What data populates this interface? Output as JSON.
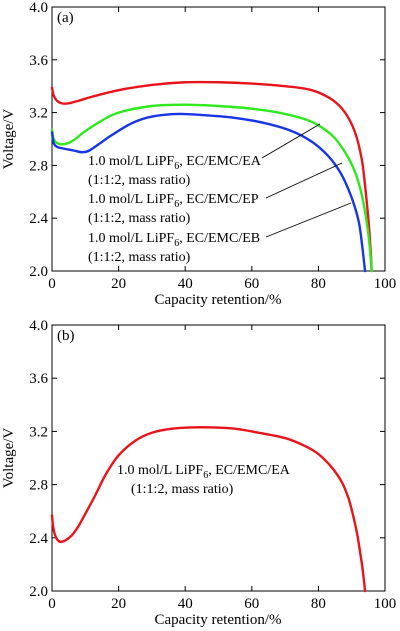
{
  "chart_data": [
    {
      "type": "line",
      "panel_label": "(a)",
      "xlabel": "Capacity retention/%",
      "ylabel": "Voltage/V",
      "xlim": [
        0,
        100
      ],
      "ylim": [
        2.0,
        4.0
      ],
      "x_ticks": [
        0,
        20,
        40,
        60,
        80,
        100
      ],
      "y_ticks": [
        2.0,
        2.4,
        2.8,
        3.2,
        3.6,
        4.0
      ],
      "x_tick_labels": [
        "0",
        "20",
        "40",
        "60",
        "80",
        "100"
      ],
      "y_tick_labels": [
        "2.0",
        "2.4",
        "2.8",
        "3.2",
        "3.6",
        "4.0"
      ],
      "grid": false,
      "series": [
        {
          "color": "#e8141c",
          "x": [
            0,
            0.5,
            1.5,
            3,
            5,
            8,
            12,
            20,
            30,
            40,
            50,
            60,
            70,
            78,
            84,
            88,
            91,
            93,
            94,
            94.8,
            95.3,
            95.7,
            96.0
          ],
          "y": [
            3.39,
            3.33,
            3.29,
            3.27,
            3.27,
            3.29,
            3.32,
            3.37,
            3.41,
            3.43,
            3.43,
            3.42,
            3.4,
            3.37,
            3.3,
            3.2,
            3.05,
            2.85,
            2.65,
            2.45,
            2.3,
            2.15,
            2.0
          ]
        },
        {
          "color": "#2fe81d",
          "x": [
            0,
            0.5,
            1.5,
            3,
            5,
            7,
            10,
            15,
            20,
            30,
            40,
            50,
            60,
            70,
            78,
            84,
            88,
            91,
            93,
            94.2,
            95.0,
            95.6,
            96.0
          ],
          "y": [
            3.07,
            3.0,
            2.97,
            2.96,
            2.97,
            3.0,
            3.06,
            3.14,
            3.2,
            3.25,
            3.26,
            3.25,
            3.23,
            3.19,
            3.13,
            3.03,
            2.9,
            2.75,
            2.58,
            2.42,
            2.28,
            2.13,
            2.0
          ]
        },
        {
          "color": "#1636e6",
          "x": [
            0,
            0.5,
            1.5,
            3,
            5,
            7,
            9,
            11,
            14,
            18,
            24,
            30,
            38,
            46,
            55,
            64,
            72,
            78,
            83,
            86.5,
            89,
            91,
            92.3,
            93.2,
            94.0
          ],
          "y": [
            3.05,
            2.97,
            2.94,
            2.93,
            2.92,
            2.91,
            2.9,
            2.91,
            2.96,
            3.03,
            3.12,
            3.17,
            3.19,
            3.18,
            3.16,
            3.12,
            3.06,
            2.98,
            2.87,
            2.75,
            2.62,
            2.48,
            2.35,
            2.18,
            2.0
          ]
        }
      ],
      "annotations": [
        {
          "main": "1.0 mol/L LiPF",
          "sub": "6",
          "rest": ", EC/EMC/EA",
          "line2": "(1:1:2, mass ratio)"
        },
        {
          "main": "1.0 mol/L LiPF",
          "sub": "6",
          "rest": ", EC/EMC/EP",
          "line2": "(1:1:2, mass ratio)"
        },
        {
          "main": "1.0 mol/L LiPF",
          "sub": "6",
          "rest": ", EC/EMC/EB",
          "line2": "(1:1:2, mass ratio)"
        }
      ]
    },
    {
      "type": "line",
      "panel_label": "(b)",
      "xlabel": "Capacity retention/%",
      "ylabel": "Voltage/V",
      "xlim": [
        0,
        100
      ],
      "ylim": [
        2.0,
        4.0
      ],
      "x_ticks": [
        0,
        20,
        40,
        60,
        80,
        100
      ],
      "y_ticks": [
        2.0,
        2.4,
        2.8,
        3.2,
        3.6,
        4.0
      ],
      "x_tick_labels": [
        "0",
        "20",
        "40",
        "60",
        "80",
        "100"
      ],
      "y_tick_labels": [
        "2.0",
        "2.4",
        "2.8",
        "3.2",
        "3.6",
        "4.0"
      ],
      "grid": false,
      "series": [
        {
          "color": "#e8141c",
          "x": [
            0,
            0.3,
            0.8,
            1.5,
            2.5,
            4,
            6,
            8,
            10,
            13,
            16,
            20,
            25,
            30,
            36,
            42,
            48,
            55,
            62,
            70,
            76,
            80,
            84,
            87,
            89,
            90.5,
            91.7,
            92.6,
            93.3,
            93.8,
            94.0
          ],
          "y": [
            2.57,
            2.49,
            2.43,
            2.39,
            2.37,
            2.38,
            2.42,
            2.49,
            2.58,
            2.72,
            2.87,
            3.02,
            3.13,
            3.19,
            3.22,
            3.23,
            3.23,
            3.22,
            3.19,
            3.15,
            3.09,
            3.03,
            2.93,
            2.82,
            2.7,
            2.56,
            2.42,
            2.28,
            2.16,
            2.05,
            2.0
          ]
        }
      ],
      "annotations": [
        {
          "main": "1.0 mol/L LiPF",
          "sub": "6",
          "rest": ", EC/EMC/EA",
          "line2": "(1:1:2, mass ratio)"
        }
      ]
    }
  ]
}
